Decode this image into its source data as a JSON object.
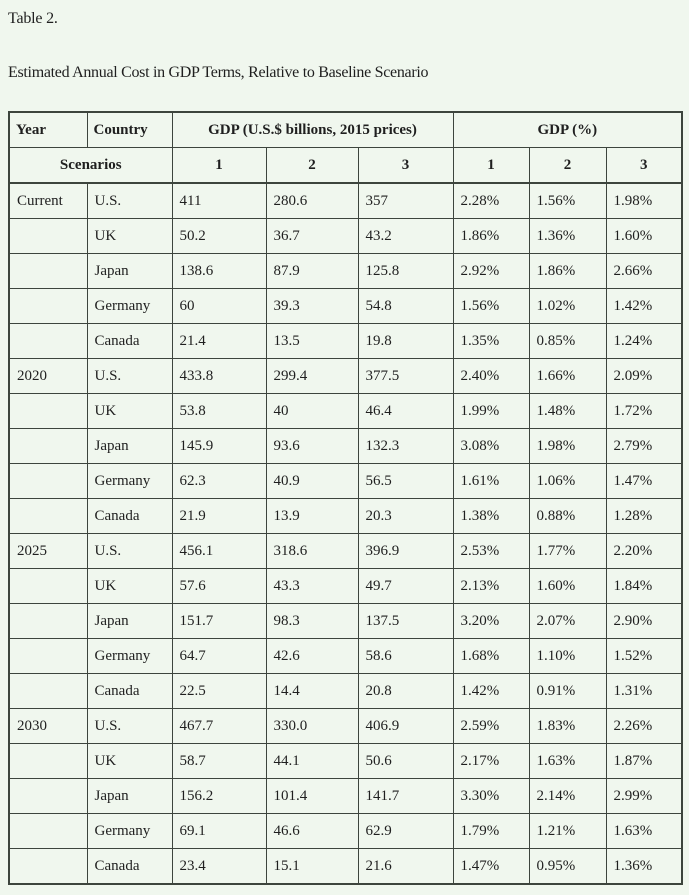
{
  "page": {
    "title": "Table 2.",
    "subtitle": "Estimated Annual Cost in GDP Terms, Relative to Baseline Scenario"
  },
  "colors": {
    "background": "#f0f7ee",
    "border": "#3d453d",
    "text": "#1f1f1f"
  },
  "table": {
    "header": {
      "year": "Year",
      "country": "Country",
      "gdp_billions": "GDP (U.S.$ billions, 2015 prices)",
      "gdp_percent": "GDP (%)",
      "scenarios_label": "Scenarios",
      "scenario_cols": [
        "1",
        "2",
        "3",
        "1",
        "2",
        "3"
      ]
    },
    "rows": [
      {
        "year": "Current",
        "country": "U.S.",
        "gdp": [
          "411",
          "280.6",
          "357"
        ],
        "pct": [
          "2.28%",
          "1.56%",
          "1.98%"
        ]
      },
      {
        "year": "",
        "country": "UK",
        "gdp": [
          "50.2",
          "36.7",
          "43.2"
        ],
        "pct": [
          "1.86%",
          "1.36%",
          "1.60%"
        ]
      },
      {
        "year": "",
        "country": "Japan",
        "gdp": [
          "138.6",
          "87.9",
          "125.8"
        ],
        "pct": [
          "2.92%",
          "1.86%",
          "2.66%"
        ]
      },
      {
        "year": "",
        "country": "Germany",
        "gdp": [
          "60",
          "39.3",
          "54.8"
        ],
        "pct": [
          "1.56%",
          "1.02%",
          "1.42%"
        ]
      },
      {
        "year": "",
        "country": "Canada",
        "gdp": [
          "21.4",
          "13.5",
          "19.8"
        ],
        "pct": [
          "1.35%",
          "0.85%",
          "1.24%"
        ]
      },
      {
        "year": "2020",
        "country": "U.S.",
        "gdp": [
          "433.8",
          "299.4",
          "377.5"
        ],
        "pct": [
          "2.40%",
          "1.66%",
          "2.09%"
        ]
      },
      {
        "year": "",
        "country": "UK",
        "gdp": [
          "53.8",
          "40",
          "46.4"
        ],
        "pct": [
          "1.99%",
          "1.48%",
          "1.72%"
        ]
      },
      {
        "year": "",
        "country": "Japan",
        "gdp": [
          "145.9",
          "93.6",
          "132.3"
        ],
        "pct": [
          "3.08%",
          "1.98%",
          "2.79%"
        ]
      },
      {
        "year": "",
        "country": "Germany",
        "gdp": [
          "62.3",
          "40.9",
          "56.5"
        ],
        "pct": [
          "1.61%",
          "1.06%",
          "1.47%"
        ]
      },
      {
        "year": "",
        "country": "Canada",
        "gdp": [
          "21.9",
          "13.9",
          "20.3"
        ],
        "pct": [
          "1.38%",
          "0.88%",
          "1.28%"
        ]
      },
      {
        "year": "2025",
        "country": "U.S.",
        "gdp": [
          "456.1",
          "318.6",
          "396.9"
        ],
        "pct": [
          "2.53%",
          "1.77%",
          "2.20%"
        ]
      },
      {
        "year": "",
        "country": "UK",
        "gdp": [
          "57.6",
          "43.3",
          "49.7"
        ],
        "pct": [
          "2.13%",
          "1.60%",
          "1.84%"
        ]
      },
      {
        "year": "",
        "country": "Japan",
        "gdp": [
          "151.7",
          "98.3",
          "137.5"
        ],
        "pct": [
          "3.20%",
          "2.07%",
          "2.90%"
        ]
      },
      {
        "year": "",
        "country": "Germany",
        "gdp": [
          "64.7",
          "42.6",
          "58.6"
        ],
        "pct": [
          "1.68%",
          "1.10%",
          "1.52%"
        ]
      },
      {
        "year": "",
        "country": "Canada",
        "gdp": [
          "22.5",
          "14.4",
          "20.8"
        ],
        "pct": [
          "1.42%",
          "0.91%",
          "1.31%"
        ]
      },
      {
        "year": "2030",
        "country": "U.S.",
        "gdp": [
          "467.7",
          "330.0",
          "406.9"
        ],
        "pct": [
          "2.59%",
          "1.83%",
          "2.26%"
        ]
      },
      {
        "year": "",
        "country": "UK",
        "gdp": [
          "58.7",
          "44.1",
          "50.6"
        ],
        "pct": [
          "2.17%",
          "1.63%",
          "1.87%"
        ]
      },
      {
        "year": "",
        "country": "Japan",
        "gdp": [
          "156.2",
          "101.4",
          "141.7"
        ],
        "pct": [
          "3.30%",
          "2.14%",
          "2.99%"
        ]
      },
      {
        "year": "",
        "country": "Germany",
        "gdp": [
          "69.1",
          "46.6",
          "62.9"
        ],
        "pct": [
          "1.79%",
          "1.21%",
          "1.63%"
        ]
      },
      {
        "year": "",
        "country": "Canada",
        "gdp": [
          "23.4",
          "15.1",
          "21.6"
        ],
        "pct": [
          "1.47%",
          "0.95%",
          "1.36%"
        ]
      }
    ]
  }
}
